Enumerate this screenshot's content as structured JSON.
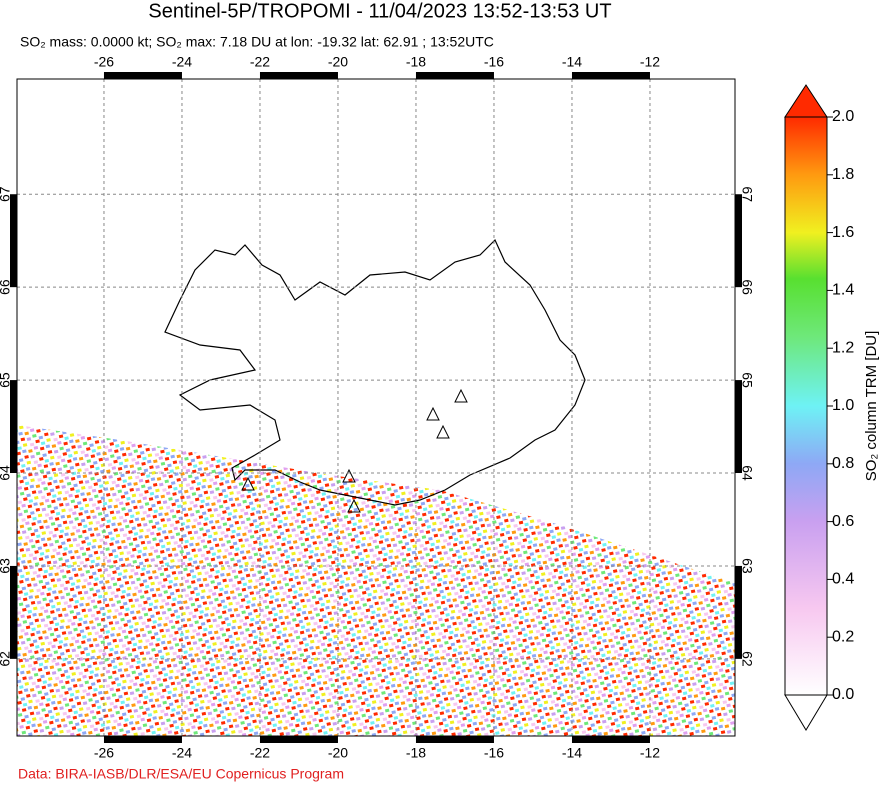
{
  "chart_data": {
    "type": "map",
    "title": "Sentinel-5P/TROPOMI - 11/04/2023 13:52-13:53 UT",
    "subtitle": "SO₂ mass: 0.0000 kt; SO₂ max: 7.18 DU at lon: -19.32 lat: 62.91 ; 13:52UTC",
    "footer": "Data: BIRA-IASB/DLR/ESA/EU Copernicus Program",
    "xlim": [
      -28.23,
      -9.82
    ],
    "ylim": [
      61.17,
      68.24
    ],
    "xticks": [
      -26,
      -24,
      -22,
      -20,
      -18,
      -16,
      -14,
      -12
    ],
    "yticks": [
      62,
      63,
      64,
      65,
      66,
      67
    ],
    "grid": true,
    "colorbar": {
      "label": "SO₂ column TRM [DU]",
      "lim": [
        0,
        2
      ],
      "ticks": [
        {
          "value": 0,
          "label": "0.0"
        },
        {
          "value": 0.2,
          "label": "0.2"
        },
        {
          "value": 0.4,
          "label": "0.4"
        },
        {
          "value": 0.6,
          "label": "0.6"
        },
        {
          "value": 0.8,
          "label": "0.8"
        },
        {
          "value": 1,
          "label": "1.0"
        },
        {
          "value": 1.2,
          "label": "1.2"
        },
        {
          "value": 1.4,
          "label": "1.4"
        },
        {
          "value": 1.6,
          "label": "1.6"
        },
        {
          "value": 1.8,
          "label": "1.8"
        },
        {
          "value": 2,
          "label": "2.0"
        }
      ]
    }
  }
}
